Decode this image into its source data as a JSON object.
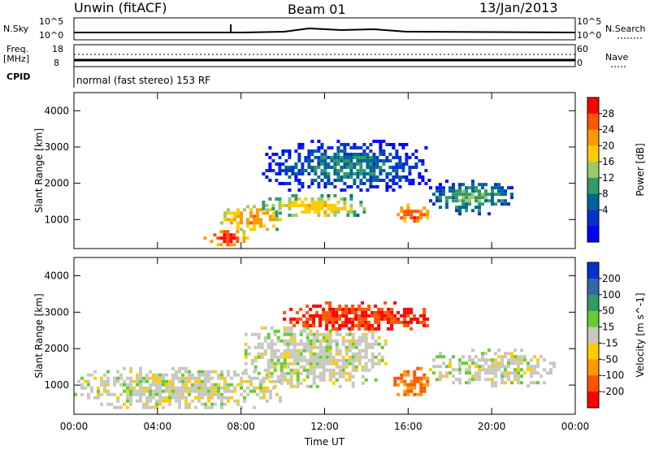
{
  "header": {
    "left": "Unwin (fitACF)",
    "center": "Beam 01",
    "right": "13/Jan/2013"
  },
  "status_panel": {
    "nsky_label": "N.Sky",
    "nsearch_label": "N.Search",
    "nave_label": "Nave",
    "freq_label_1": "Freq.",
    "freq_label_2": "[MHz]",
    "cpid_label": "CPID",
    "cpid_text": "normal (fast stereo) 153 RF",
    "noise_ticks_left": [
      "10^5",
      "10^0"
    ],
    "noise_ticks_right": [
      "10^5",
      "10^0"
    ],
    "freq_ticks": [
      "18",
      "8"
    ],
    "nave_ticks": [
      "60",
      "0"
    ]
  },
  "chart_data": [
    {
      "type": "heatmap",
      "name": "Power",
      "ylabel": "Slant Range [km]",
      "xlabel": "Time UT",
      "x_ticks": [
        "00:00",
        "04:00",
        "08:00",
        "12:00",
        "16:00",
        "20:00",
        "00:00"
      ],
      "y_ticks": [
        1000,
        2000,
        3000,
        4000
      ],
      "ylim": [
        200,
        4500
      ],
      "colorbar": {
        "label": "Power [dB]",
        "ticks": [
          28,
          24,
          20,
          16,
          12,
          8,
          4
        ],
        "colors": [
          "#ff0000",
          "#ff5500",
          "#ff9900",
          "#ffcc00",
          "#99cc66",
          "#339966",
          "#006699",
          "#0033cc",
          "#0000ff"
        ]
      },
      "features": [
        {
          "t": [
            6.2,
            8.3
          ],
          "r": [
            300,
            800
          ],
          "level": 29
        },
        {
          "t": [
            7.0,
            10.0
          ],
          "r": [
            700,
            1400
          ],
          "level": 24
        },
        {
          "t": [
            9.0,
            14.0
          ],
          "r": [
            1100,
            1700
          ],
          "level": 20
        },
        {
          "t": [
            15.3,
            17.0
          ],
          "r": [
            950,
            1450
          ],
          "level": 28
        },
        {
          "t": [
            17.0,
            21.0
          ],
          "r": [
            1200,
            2100
          ],
          "level": 12
        },
        {
          "t": [
            9.0,
            17.0
          ],
          "r": [
            1800,
            3200
          ],
          "level": 8
        }
      ]
    },
    {
      "type": "heatmap",
      "name": "Velocity",
      "ylabel": "Slant Range [km]",
      "xlabel": "Time UT",
      "x_ticks": [
        "00:00",
        "04:00",
        "08:00",
        "12:00",
        "16:00",
        "20:00",
        "00:00"
      ],
      "y_ticks": [
        1000,
        2000,
        3000,
        4000
      ],
      "ylim": [
        200,
        4500
      ],
      "colorbar": {
        "label": "Velocity [m s^-1]",
        "ticks": [
          200,
          100,
          50,
          15,
          -15,
          -50,
          -100,
          -200
        ],
        "colors": [
          "#0033cc",
          "#3366aa",
          "#339966",
          "#66cc33",
          "#c8c8c0",
          "#ffcc00",
          "#ff9900",
          "#ff5500",
          "#ff0000"
        ]
      },
      "features": [
        {
          "t": [
            0.0,
            10.0
          ],
          "r": [
            400,
            1500
          ],
          "v": 0
        },
        {
          "t": [
            8.0,
            15.0
          ],
          "r": [
            1000,
            2700
          ],
          "v": 0
        },
        {
          "t": [
            15.3,
            17.0
          ],
          "r": [
            700,
            1500
          ],
          "v": -80
        },
        {
          "t": [
            17.0,
            23.0
          ],
          "r": [
            1000,
            2000
          ],
          "v": 0
        },
        {
          "t": [
            10.0,
            17.0
          ],
          "r": [
            2500,
            3300
          ],
          "v": -150
        }
      ]
    }
  ],
  "colors": {
    "axis": "#000000",
    "background": "#ffffff"
  },
  "x_axis_label": "Time UT"
}
